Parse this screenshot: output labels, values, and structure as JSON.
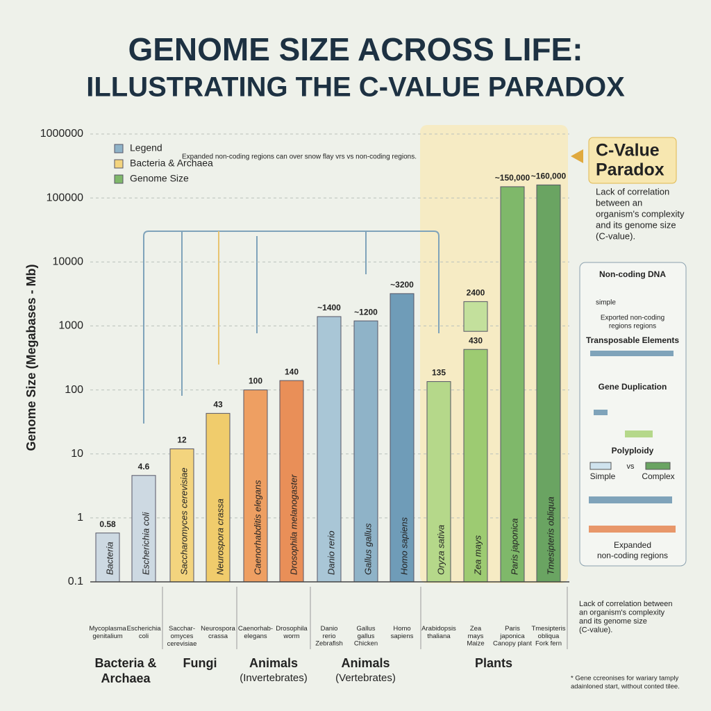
{
  "title": "GENOME SIZE ACROSS LIFE:",
  "subtitle": "ILLUSTRATING THE C-VALUE PARADOX",
  "chart_data": {
    "type": "bar",
    "y_label": "Genome Size (Megabases - Mb)",
    "log_scale": true,
    "grid": true,
    "ylim": [
      0.1,
      1000000
    ],
    "yticks": [
      0.1,
      1,
      10,
      100,
      1000,
      10000,
      100000,
      1000000
    ],
    "categories": [
      "Bacteria",
      "Escherichia coli",
      "Saccharomyces cerevisiae",
      "Neurospora crassa",
      "Caenorhabditis elegans",
      "Drosophila melanogaster",
      "Danio rerio",
      "Gallus gallus",
      "Homo sapiens",
      "Oryza sativa",
      "Zea mays",
      "Paris japonica",
      "Tmesipteris obliqua"
    ],
    "values": [
      0.58,
      4.6,
      12,
      43,
      100,
      140,
      1400,
      1200,
      3200,
      135,
      2400,
      150000,
      160000
    ],
    "value_labels": [
      "0.58",
      "4.6",
      "12",
      "43",
      "100",
      "140",
      "~1400",
      "~1200",
      "~3200",
      "135",
      "2400",
      "~150,000",
      "~160,000"
    ],
    "split_values": [
      null,
      null,
      null,
      null,
      null,
      null,
      null,
      null,
      null,
      null,
      430,
      null,
      null
    ],
    "colors": [
      "#cdd9e2",
      "#cdd9e2",
      "#f3d47e",
      "#f0cc6c",
      "#ee9f62",
      "#e98f58",
      "#a9c6d6",
      "#8fb3c8",
      "#6f9cb8",
      "#b5d88a",
      "#9dcb72",
      "#7fb86a",
      "#6aa462"
    ],
    "x_names": [
      "Mycoplasma genitalium",
      "Escherichia coli",
      "Sacchar- omyces cerevisiae",
      "Neurospora crassa",
      "Caenorhab- elegans",
      "Drosophila worm",
      "Danio rerio",
      "Gallus gallus",
      "Homo sapiens",
      "Arabidopsis thaliana",
      "Zea mays",
      "Paris japonica",
      "Tmesipteris obliqua"
    ],
    "common_names": [
      null,
      null,
      null,
      null,
      null,
      null,
      "Zebrafish",
      "Chicken",
      null,
      null,
      "Maize",
      "Canopy plant",
      "Fork fern"
    ],
    "groups": [
      {
        "label": "Bacteria &",
        "label2": "Archaea"
      },
      {
        "label": "Fungi"
      },
      {
        "label": "Animals",
        "sub": "(Invertebrates)"
      },
      {
        "label": "Animals",
        "sub": "(Vertebrates)"
      },
      {
        "label": "Plants"
      }
    ],
    "legend": {
      "title": "Legend",
      "items": [
        {
          "name": "Bacteria & Archaea",
          "color": "#f3d47e"
        },
        {
          "name": "Genome Size",
          "color": "#7fb86a"
        }
      ],
      "corner": "upper left"
    },
    "annotation": "Expanded non-coding regions can over snow flay vrs vs non-coding regions."
  },
  "callout": {
    "title": "C-Value",
    "title2": "Paradox",
    "text": [
      "Lack of correlation",
      "between an",
      "organism's complexity",
      "and its genome size",
      "(C-value)."
    ]
  },
  "panel": {
    "h1": "Non-coding DNA",
    "simple": "simple",
    "note": [
      "Exported non-coding",
      "regions regions"
    ],
    "h2": "Transposable Elements",
    "h3": "Gene Duplication",
    "h4": "Polyploidy",
    "simple2": "Simple",
    "vs": "vs",
    "complex": "Complex",
    "foot": [
      "Expanded",
      "non-coding regions"
    ]
  },
  "side_note": [
    "Lack of correlation between",
    "an organism's complexity",
    "and its genome size",
    "(C-value)."
  ],
  "footnote": [
    "* Gene ccreonises for wariary tamply",
    "adainloned start, without conted tilee."
  ]
}
